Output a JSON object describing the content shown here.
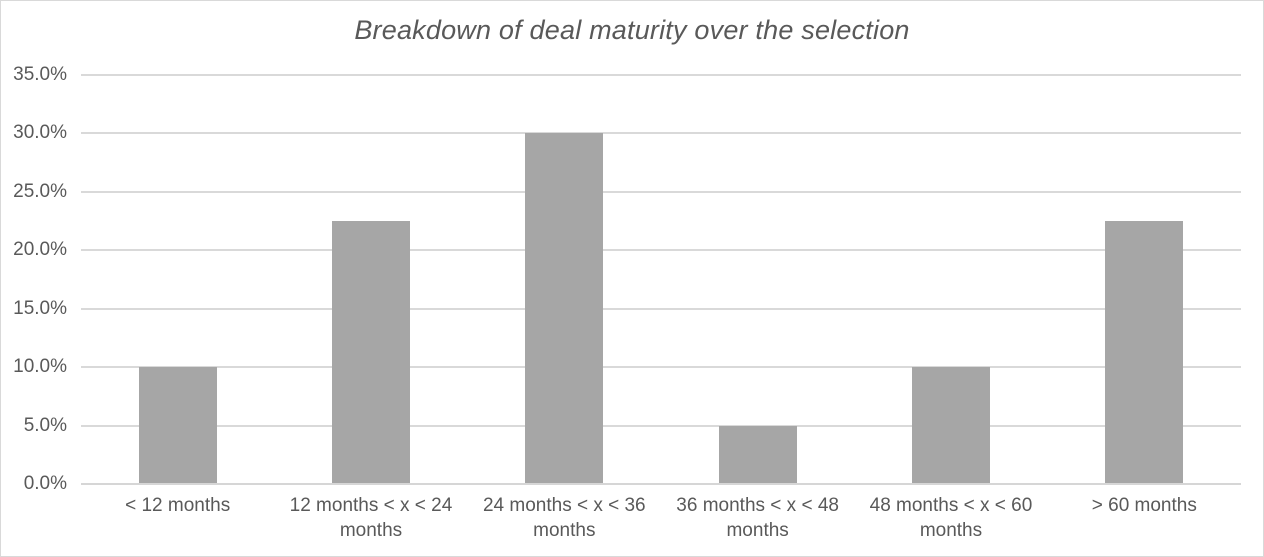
{
  "frame": {
    "background": "#ffffff",
    "border_color": "#d9d9d9"
  },
  "chart_data": {
    "type": "bar",
    "title": "Breakdown of deal maturity over the selection",
    "categories": [
      "< 12 months",
      "12 months < x < 24 months",
      "24 months < x < 36 months",
      "36 months < x < 48 months",
      "48 months < x < 60 months",
      "> 60 months"
    ],
    "values": [
      10.0,
      22.5,
      30.0,
      5.0,
      10.0,
      22.5
    ],
    "value_unit": "percent",
    "xlabel": "",
    "ylabel": "",
    "ylim": [
      0,
      35
    ],
    "ytick_step": 5,
    "ytick_labels_top_to_bottom": [
      "35.0%",
      "30.0%",
      "25.0%",
      "20.0%",
      "15.0%",
      "10.0%",
      "5.0%",
      "0.0%"
    ],
    "grid": true,
    "legend_position": "none",
    "colors": {
      "bar": "#a6a6a6",
      "gridline": "#d9d9d9",
      "axis_line": "#d6d6d6",
      "axis_text": "#595959",
      "title_text": "#595959"
    }
  }
}
